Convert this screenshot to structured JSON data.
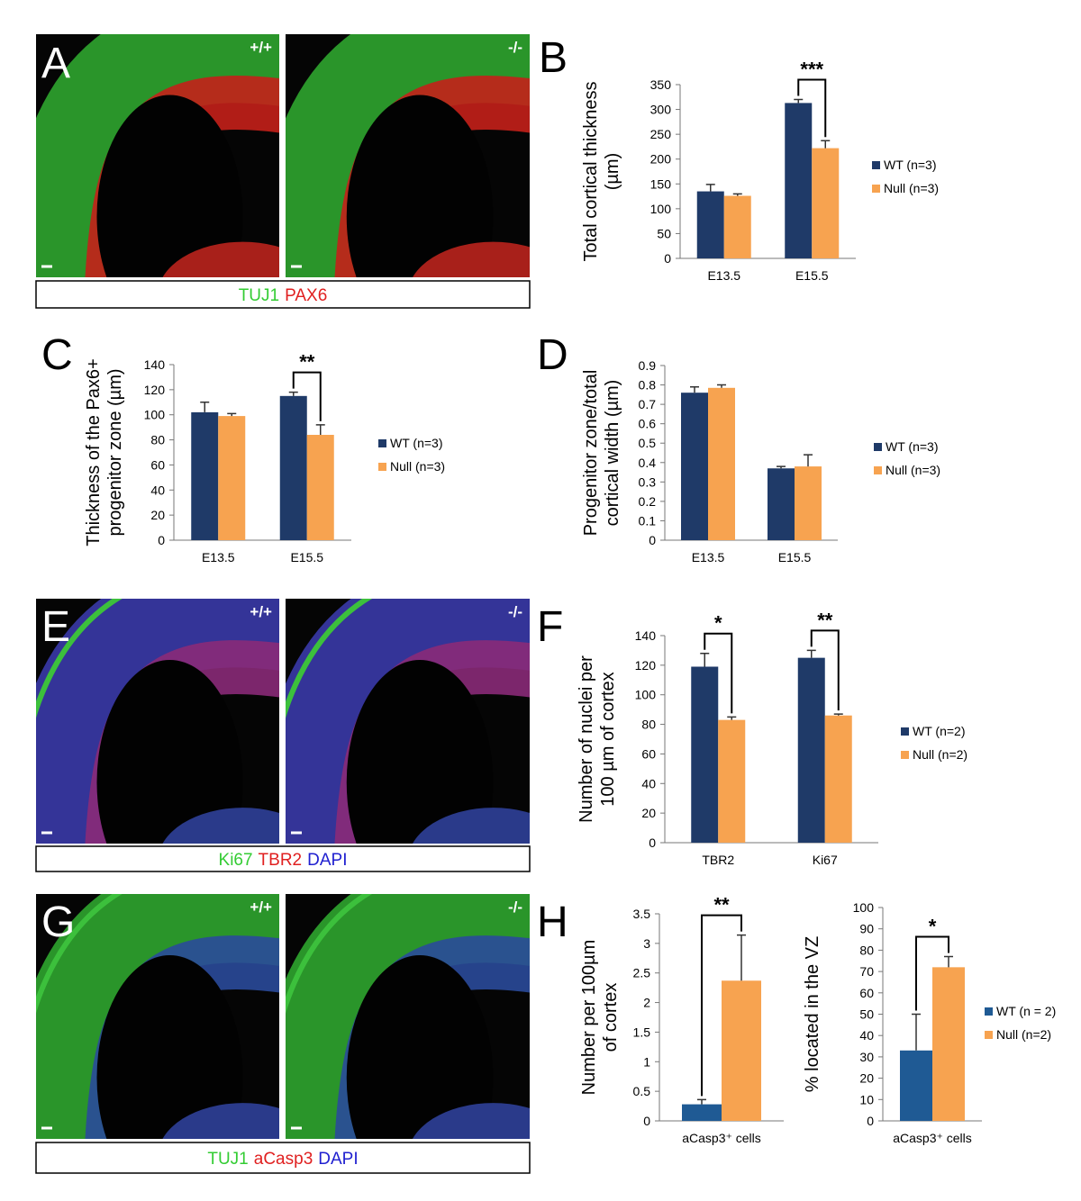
{
  "images": [
    {
      "panel": "A",
      "genotypes": [
        "+/+",
        "-/-"
      ],
      "stain": [
        {
          "text": "TUJ1",
          "color": "#33cc33"
        },
        {
          "text": "PAX6",
          "color": "#e02020"
        }
      ]
    },
    {
      "panel": "E",
      "genotypes": [
        "+/+",
        "-/-"
      ],
      "stain": [
        {
          "text": "Ki67",
          "color": "#33cc33"
        },
        {
          "text": "TBR2",
          "color": "#e02020"
        },
        {
          "text": "DAPI",
          "color": "#2020d0"
        }
      ]
    },
    {
      "panel": "G",
      "genotypes": [
        "+/+",
        "-/-"
      ],
      "stain": [
        {
          "text": "TUJ1",
          "color": "#33cc33"
        },
        {
          "text": "aCasp3",
          "color": "#e02020"
        },
        {
          "text": "DAPI",
          "color": "#2020d0"
        }
      ]
    }
  ],
  "chart_data": [
    {
      "type": "bar",
      "panel": "B",
      "ylabel": [
        "Total cortical thickness",
        "(µm)"
      ],
      "categories": [
        "E13.5",
        "E15.5"
      ],
      "series": [
        {
          "name": "WT (n=3)",
          "color": "#1f3a68",
          "values": [
            135,
            313
          ],
          "errors": [
            14,
            7
          ]
        },
        {
          "name": "Null (n=3)",
          "color": "#f7a350",
          "values": [
            126,
            222
          ],
          "errors": [
            4,
            15
          ]
        }
      ],
      "ylim": [
        0,
        350
      ],
      "yticks": [
        0,
        50,
        100,
        150,
        200,
        250,
        300,
        350
      ],
      "legend": "right",
      "annotations": [
        {
          "text": "***",
          "category": "E15.5"
        }
      ]
    },
    {
      "type": "bar",
      "panel": "C",
      "ylabel": [
        "Thickness of the Pax6+",
        "progenitor zone (µm)"
      ],
      "categories": [
        "E13.5",
        "E15.5"
      ],
      "series": [
        {
          "name": "WT (n=3)",
          "color": "#1f3a68",
          "values": [
            102,
            115
          ],
          "errors": [
            8,
            3
          ]
        },
        {
          "name": "Null (n=3)",
          "color": "#f7a350",
          "values": [
            99,
            84
          ],
          "errors": [
            2,
            8
          ]
        }
      ],
      "ylim": [
        0,
        140
      ],
      "yticks": [
        0,
        20,
        40,
        60,
        80,
        100,
        120,
        140
      ],
      "legend": "right",
      "annotations": [
        {
          "text": "**",
          "category": "E15.5"
        }
      ]
    },
    {
      "type": "bar",
      "panel": "D",
      "ylabel": [
        "Progenitor zone/total",
        "cortical width (µm)"
      ],
      "categories": [
        "E13.5",
        "E15.5"
      ],
      "series": [
        {
          "name": "WT (n=3)",
          "color": "#1f3a68",
          "values": [
            0.76,
            0.37
          ],
          "errors": [
            0.03,
            0.01
          ]
        },
        {
          "name": "Null (n=3)",
          "color": "#f7a350",
          "values": [
            0.785,
            0.38
          ],
          "errors": [
            0.015,
            0.06
          ]
        }
      ],
      "ylim": [
        0,
        0.9
      ],
      "yticks": [
        0,
        0.1,
        0.2,
        0.3,
        0.4,
        0.5,
        0.6,
        0.7,
        0.8,
        0.9
      ],
      "legend": "right",
      "annotations": []
    },
    {
      "type": "bar",
      "panel": "F",
      "ylabel": [
        "Number of nuclei per",
        "100 µm of cortex"
      ],
      "categories": [
        "TBR2",
        "Ki67"
      ],
      "series": [
        {
          "name": "WT (n=2)",
          "color": "#1f3a68",
          "values": [
            119,
            125
          ],
          "errors": [
            9,
            5
          ]
        },
        {
          "name": "Null (n=2)",
          "color": "#f7a350",
          "values": [
            83,
            86
          ],
          "errors": [
            2,
            1
          ]
        }
      ],
      "ylim": [
        0,
        140
      ],
      "yticks": [
        0,
        20,
        40,
        60,
        80,
        100,
        120,
        140
      ],
      "legend": "right",
      "annotations": [
        {
          "text": "*",
          "category": "TBR2"
        },
        {
          "text": "**",
          "category": "Ki67"
        }
      ]
    },
    {
      "type": "bar",
      "panel": "H",
      "ylabel": [
        "Number per 100µm",
        "of cortex"
      ],
      "categories": [
        "aCasp3⁺ cells"
      ],
      "series": [
        {
          "color": "#1f5a94",
          "values": [
            0.28
          ],
          "errors": [
            0.08
          ]
        },
        {
          "color": "#f7a350",
          "values": [
            2.37
          ],
          "errors": [
            0.77
          ]
        }
      ],
      "ylim": [
        0,
        3.5
      ],
      "yticks": [
        0,
        0.5,
        1,
        1.5,
        2,
        2.5,
        3,
        3.5
      ],
      "annotations": [
        {
          "text": "**",
          "category": "aCasp3⁺ cells"
        }
      ]
    },
    {
      "type": "bar",
      "ylabel": [
        "% located in the VZ"
      ],
      "categories": [
        "aCasp3⁺ cells"
      ],
      "series": [
        {
          "name": "WT (n = 2)",
          "color": "#1f5a94",
          "values": [
            33
          ],
          "errors": [
            17
          ]
        },
        {
          "name": "Null (n=2)",
          "color": "#f7a350",
          "values": [
            72
          ],
          "errors": [
            5
          ]
        }
      ],
      "ylim": [
        0,
        100
      ],
      "yticks": [
        0,
        10,
        20,
        30,
        40,
        50,
        60,
        70,
        80,
        90,
        100
      ],
      "legend": "right",
      "annotations": [
        {
          "text": "*",
          "category": "aCasp3⁺ cells"
        }
      ]
    }
  ]
}
